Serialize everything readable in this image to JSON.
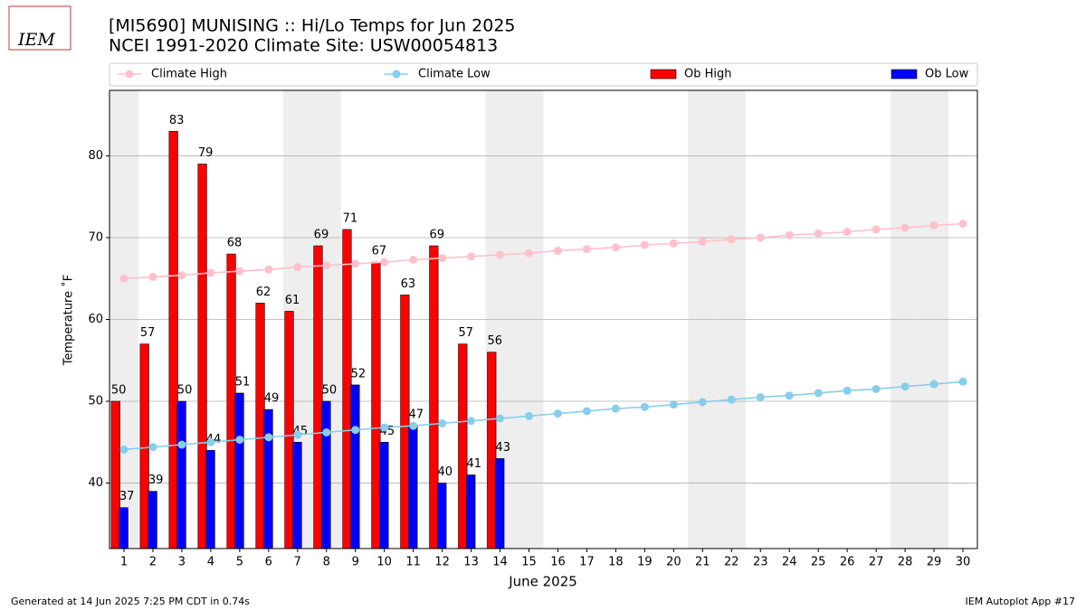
{
  "chart_data": {
    "type": "bar",
    "logo": "IEM",
    "title": "[MI5690] MUNISING :: Hi/Lo Temps for Jun 2025",
    "subtitle": "NCEI 1991-2020 Climate Site: USW00054813",
    "xlabel": "June 2025",
    "ylabel": "Temperature ˚F",
    "footer_left": "Generated at 14 Jun 2025 7:25 PM CDT in 0.74s",
    "footer_right": "IEM Autoplot App #17",
    "x": [
      1,
      2,
      3,
      4,
      5,
      6,
      7,
      8,
      9,
      10,
      11,
      12,
      13,
      14,
      15,
      16,
      17,
      18,
      19,
      20,
      21,
      22,
      23,
      24,
      25,
      26,
      27,
      28,
      29,
      30
    ],
    "xlim": [
      0.5,
      30.5
    ],
    "ylim": [
      32,
      88
    ],
    "yticks": [
      40,
      50,
      60,
      70,
      80
    ],
    "grid": true,
    "shaded_x": [
      1,
      7,
      8,
      14,
      15,
      21,
      22,
      28,
      29
    ],
    "shade_color": "#eeeeee",
    "series": [
      {
        "name": "Climate High",
        "type": "line",
        "color": "#ffc0cb",
        "values": [
          65.0,
          65.2,
          65.4,
          65.7,
          65.9,
          66.1,
          66.4,
          66.6,
          66.8,
          67.0,
          67.3,
          67.5,
          67.7,
          67.9,
          68.1,
          68.4,
          68.6,
          68.8,
          69.1,
          69.3,
          69.5,
          69.8,
          70.0,
          70.3,
          70.5,
          70.7,
          71.0,
          71.2,
          71.5,
          71.7
        ]
      },
      {
        "name": "Climate Low",
        "type": "line",
        "color": "#87ceeb",
        "values": [
          44.1,
          44.4,
          44.7,
          45.0,
          45.3,
          45.6,
          45.9,
          46.2,
          46.5,
          46.8,
          47.0,
          47.3,
          47.6,
          47.9,
          48.2,
          48.5,
          48.8,
          49.1,
          49.3,
          49.6,
          49.9,
          50.2,
          50.5,
          50.7,
          51.0,
          51.3,
          51.5,
          51.8,
          52.1,
          52.4
        ]
      },
      {
        "name": "Ob High",
        "type": "bar",
        "color": "#ff0000",
        "values": [
          50,
          57,
          83,
          79,
          68,
          62,
          61,
          69,
          71,
          67,
          63,
          69,
          57,
          56,
          null,
          null,
          null,
          null,
          null,
          null,
          null,
          null,
          null,
          null,
          null,
          null,
          null,
          null,
          null,
          null
        ]
      },
      {
        "name": "Ob Low",
        "type": "bar",
        "color": "#0000ff",
        "values": [
          37,
          39,
          50,
          44,
          51,
          49,
          45,
          50,
          52,
          45,
          47,
          40,
          41,
          43,
          null,
          null,
          null,
          null,
          null,
          null,
          null,
          null,
          null,
          null,
          null,
          null,
          null,
          null,
          null,
          null
        ]
      }
    ]
  }
}
